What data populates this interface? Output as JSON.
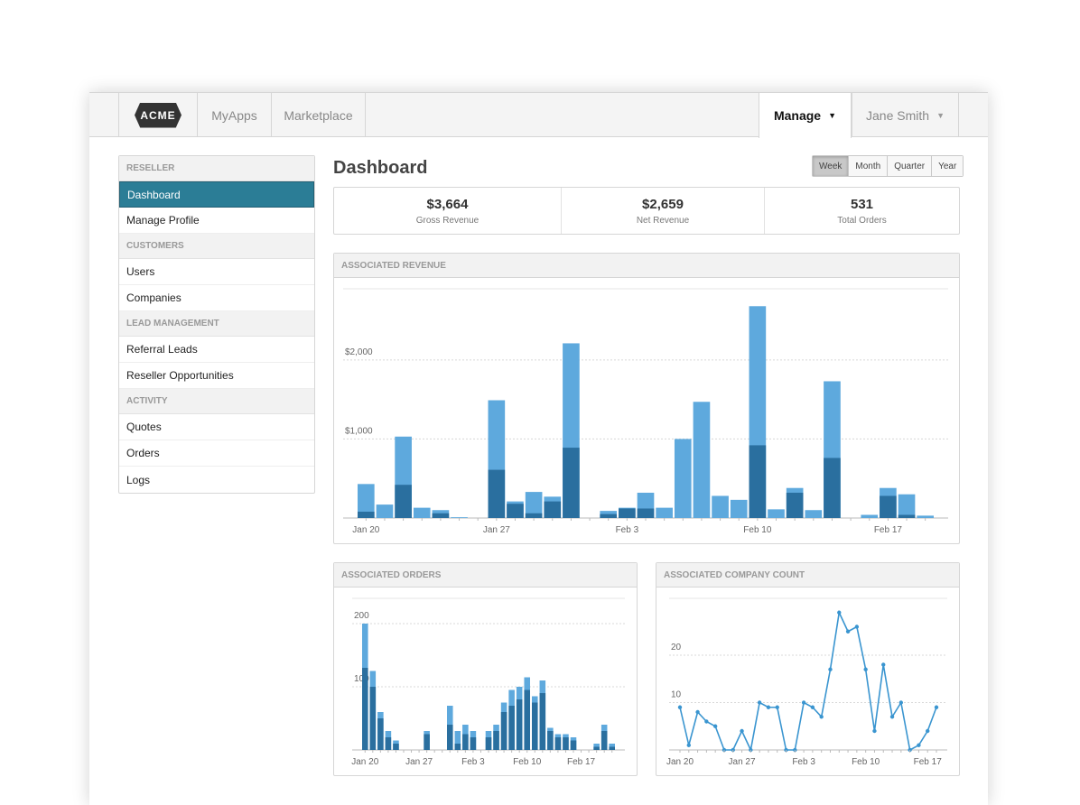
{
  "nav": {
    "logo": "ACME",
    "myapps": "MyApps",
    "marketplace": "Marketplace",
    "manage": "Manage",
    "user": "Jane Smith",
    "caret": "▼"
  },
  "sidebar": {
    "sections": [
      {
        "header": "RESELLER",
        "items": [
          "Dashboard",
          "Manage Profile"
        ]
      },
      {
        "header": "CUSTOMERS",
        "items": [
          "Users",
          "Companies"
        ]
      },
      {
        "header": "LEAD MANAGEMENT",
        "items": [
          "Referral Leads",
          "Reseller Opportunities"
        ]
      },
      {
        "header": "ACTIVITY",
        "items": [
          "Quotes",
          "Orders",
          "Logs"
        ]
      }
    ],
    "active_item": "Dashboard"
  },
  "main": {
    "title": "Dashboard",
    "ranges": [
      "Week",
      "Month",
      "Quarter",
      "Year"
    ],
    "active_range": "Week",
    "stats": [
      {
        "value": "$3,664",
        "label": "Gross Revenue"
      },
      {
        "value": "$2,659",
        "label": "Net Revenue"
      },
      {
        "value": "531",
        "label": "Total Orders"
      }
    ]
  },
  "colors": {
    "light_bar": "#5ea9dd",
    "dark_bar": "#2a6f9f",
    "line": "#3a95d0",
    "active_nav": "#2b7d96"
  },
  "chart_data": [
    {
      "type": "bar",
      "title": "ASSOCIATED REVENUE",
      "stacked": true,
      "x_ticks": [
        "Jan 20",
        "Jan 27",
        "Feb 3",
        "Feb 10",
        "Feb 17"
      ],
      "y_ticks": [
        "$1,000",
        "$2,000"
      ],
      "ylim": [
        0,
        2900
      ],
      "series": [
        {
          "name": "total",
          "values": [
            430,
            170,
            1030,
            130,
            100,
            10,
            0,
            1490,
            210,
            330,
            270,
            2210,
            0,
            90,
            130,
            320,
            130,
            1000,
            1470,
            280,
            230,
            2680,
            110,
            380,
            100,
            1730,
            0,
            40,
            380,
            300,
            30
          ]
        },
        {
          "name": "net",
          "values": [
            80,
            0,
            420,
            0,
            60,
            0,
            0,
            610,
            180,
            60,
            210,
            890,
            0,
            50,
            120,
            120,
            0,
            0,
            0,
            0,
            0,
            920,
            0,
            320,
            0,
            760,
            0,
            0,
            280,
            40,
            0
          ]
        }
      ]
    },
    {
      "type": "bar",
      "title": "ASSOCIATED ORDERS",
      "stacked": true,
      "x_ticks": [
        "Jan 20",
        "Jan 27",
        "Feb 3",
        "Feb 10",
        "Feb 17"
      ],
      "y_ticks": [
        "100",
        "200"
      ],
      "ylim": [
        0,
        240
      ],
      "series": [
        {
          "name": "total",
          "values": [
            200,
            125,
            60,
            30,
            15,
            0,
            0,
            0,
            30,
            0,
            0,
            70,
            30,
            40,
            30,
            0,
            30,
            40,
            75,
            95,
            100,
            115,
            85,
            110,
            35,
            25,
            25,
            20,
            0,
            0,
            10,
            40,
            10
          ]
        },
        {
          "name": "net",
          "values": [
            130,
            100,
            50,
            20,
            10,
            0,
            0,
            0,
            25,
            0,
            0,
            40,
            10,
            25,
            20,
            0,
            20,
            30,
            60,
            70,
            80,
            95,
            75,
            90,
            30,
            20,
            20,
            15,
            0,
            0,
            5,
            30,
            5
          ]
        }
      ]
    },
    {
      "type": "line",
      "title": "ASSOCIATED COMPANY COUNT",
      "x_ticks": [
        "Jan 20",
        "Jan 27",
        "Feb 3",
        "Feb 10",
        "Feb 17"
      ],
      "y_ticks": [
        "10",
        "20"
      ],
      "ylim": [
        0,
        32
      ],
      "values": [
        9,
        1,
        8,
        6,
        5,
        0,
        0,
        4,
        0,
        10,
        9,
        9,
        0,
        0,
        10,
        9,
        7,
        17,
        29,
        25,
        26,
        17,
        4,
        18,
        7,
        10,
        0,
        1,
        4,
        9
      ]
    }
  ]
}
